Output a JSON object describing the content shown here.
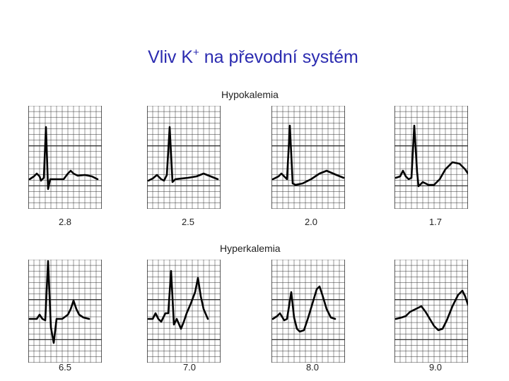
{
  "slide": {
    "title_prefix": "Vliv K",
    "title_sup": "+",
    "title_suffix": " na převodní systém"
  },
  "hypokalemia": {
    "label": "Hypokalemia",
    "panels": [
      {
        "k_value": "2.8"
      },
      {
        "k_value": "2.5"
      },
      {
        "k_value": "2.0"
      },
      {
        "k_value": "1.7"
      }
    ]
  },
  "hyperkalemia": {
    "label": "Hyperkalemia",
    "panels": [
      {
        "k_value": "6.5"
      },
      {
        "k_value": "7.0"
      },
      {
        "k_value": "8.0"
      },
      {
        "k_value": "9.0"
      }
    ]
  }
}
